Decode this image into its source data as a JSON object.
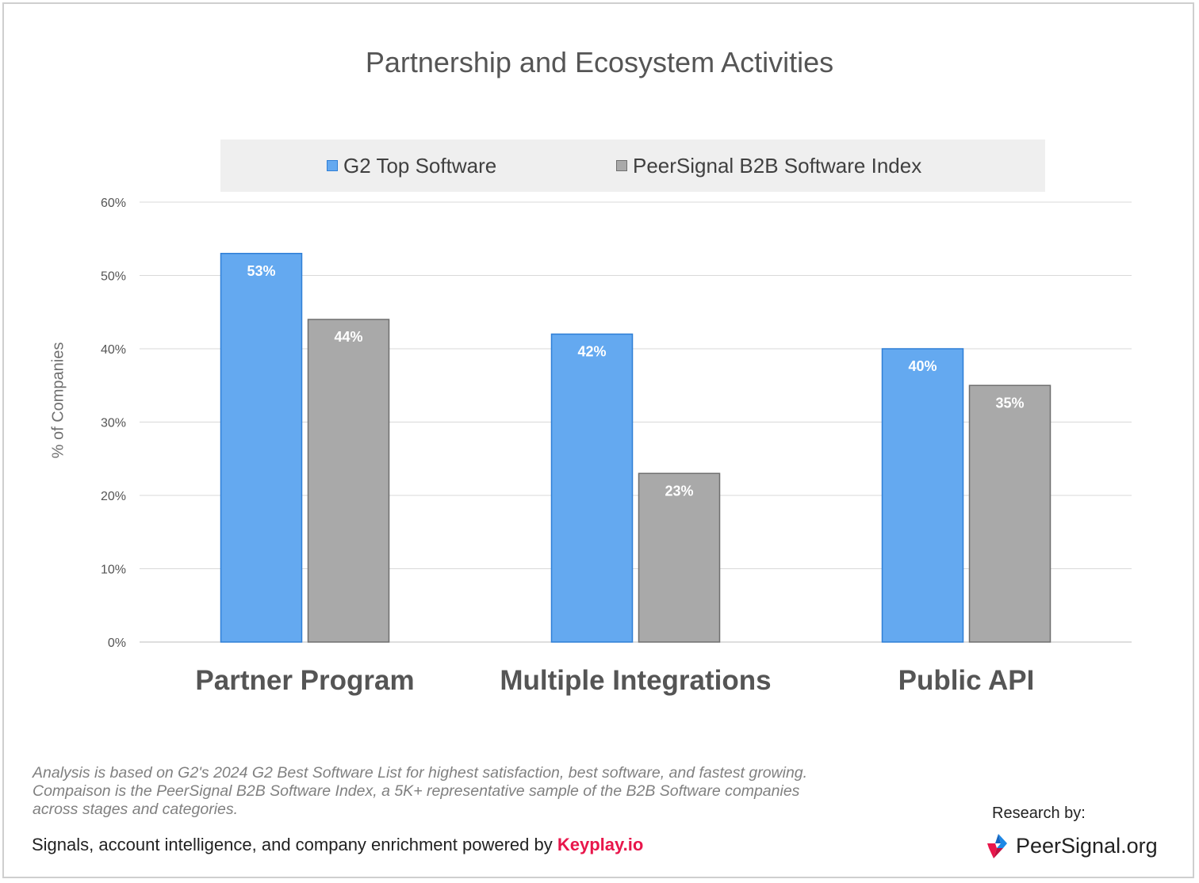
{
  "chart_data": {
    "type": "bar",
    "title": "Partnership and Ecosystem Activities",
    "xlabel": "",
    "ylabel": "% of Companies",
    "ylim": [
      0,
      60
    ],
    "yticks": [
      "0%",
      "10%",
      "20%",
      "30%",
      "40%",
      "50%",
      "60%"
    ],
    "grid": true,
    "legend_position": "top",
    "categories": [
      "Partner Program",
      "Multiple Integrations",
      "Public API"
    ],
    "series": [
      {
        "name": "G2 Top Software",
        "values": [
          53,
          42,
          40
        ],
        "labels": [
          "53%",
          "42%",
          "40%"
        ],
        "color": "#64a9f0"
      },
      {
        "name": "PeerSignal B2B Software Index",
        "values": [
          44,
          23,
          35
        ],
        "labels": [
          "44%",
          "23%",
          "35%"
        ],
        "color": "#a9a9a9"
      }
    ]
  },
  "footer": {
    "note": "Analysis is based on G2's 2024 G2 Best Software List for highest satisfaction, best software, and fastest growing. Compaison is the PeerSignal B2B Software Index, a 5K+ representative sample of the B2B Software companies across stages and categories.",
    "powered_text": "Signals, account intelligence, and company enrichment powered by",
    "powered_brand": "Keyplay.io",
    "research_label": "Research by:",
    "research_brand": "PeerSignal.org",
    "brand_color": "#e8164b"
  }
}
